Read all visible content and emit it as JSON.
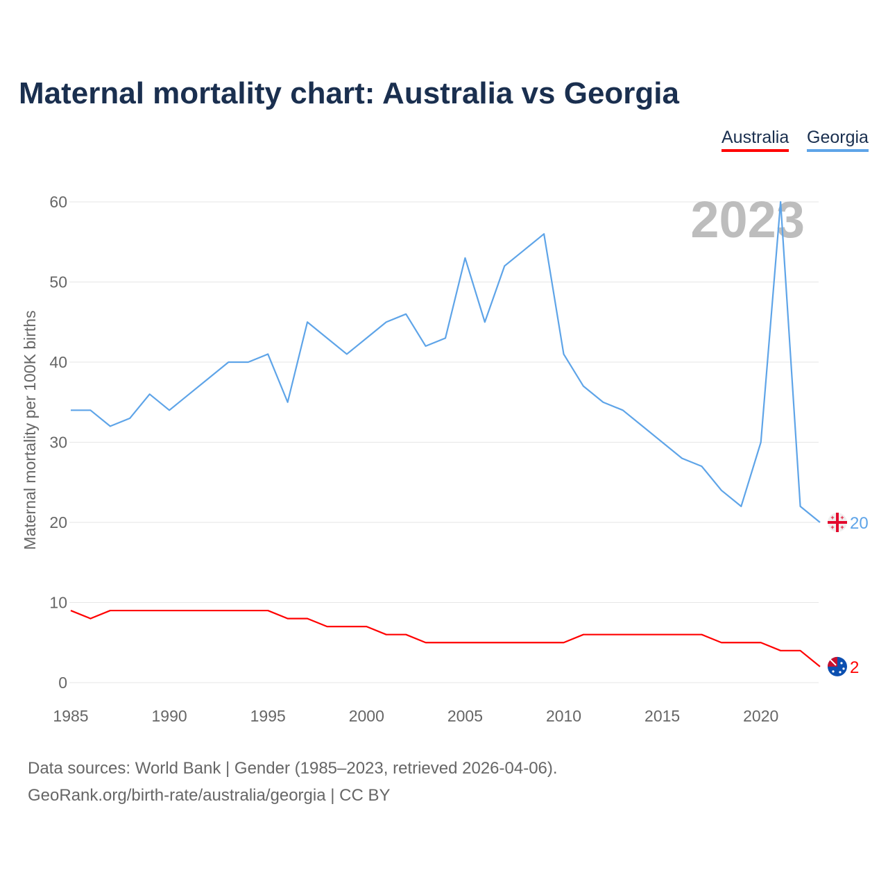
{
  "title": "Maternal mortality chart: Australia vs Georgia",
  "legend": [
    "Australia",
    "Georgia"
  ],
  "year_label": "2023",
  "source_line1": "Data sources: World Bank | Gender (1985–2023, retrieved 2026-04-06).",
  "source_line2": "GeoRank.org/birth-rate/australia/georgia | CC BY",
  "chart_data": {
    "type": "line",
    "title": "Maternal mortality chart: Australia vs Georgia",
    "xlabel": "",
    "ylabel": "Maternal mortality per 100K births",
    "xlim": [
      1985,
      2023
    ],
    "ylim": [
      0,
      60
    ],
    "xticks": [
      1985,
      1990,
      1995,
      2000,
      2005,
      2010,
      2015,
      2020
    ],
    "yticks": [
      0,
      10,
      20,
      30,
      40,
      50,
      60
    ],
    "grid": true,
    "legend_position": "top-right",
    "x": [
      1985,
      1986,
      1987,
      1988,
      1989,
      1990,
      1991,
      1992,
      1993,
      1994,
      1995,
      1996,
      1997,
      1998,
      1999,
      2000,
      2001,
      2002,
      2003,
      2004,
      2005,
      2006,
      2007,
      2008,
      2009,
      2010,
      2011,
      2012,
      2013,
      2014,
      2015,
      2016,
      2017,
      2018,
      2019,
      2020,
      2021,
      2022,
      2023
    ],
    "series": [
      {
        "name": "Australia",
        "color": "#ff0000",
        "end_label": "2",
        "flag": "australia-flag",
        "values": [
          9,
          8,
          9,
          9,
          9,
          9,
          9,
          9,
          9,
          9,
          9,
          8,
          8,
          7,
          7,
          7,
          6,
          6,
          5,
          5,
          5,
          5,
          5,
          5,
          5,
          5,
          6,
          6,
          6,
          6,
          6,
          6,
          6,
          5,
          5,
          5,
          4,
          4,
          2
        ]
      },
      {
        "name": "Georgia",
        "color": "#5ea4e8",
        "end_label": "20",
        "flag": "georgia-flag",
        "values": [
          34,
          34,
          32,
          33,
          36,
          34,
          36,
          38,
          40,
          40,
          41,
          35,
          45,
          43,
          41,
          43,
          45,
          46,
          42,
          43,
          53,
          45,
          52,
          54,
          56,
          41,
          37,
          35,
          34,
          32,
          30,
          28,
          27,
          24,
          22,
          30,
          60,
          22,
          20
        ]
      }
    ]
  }
}
